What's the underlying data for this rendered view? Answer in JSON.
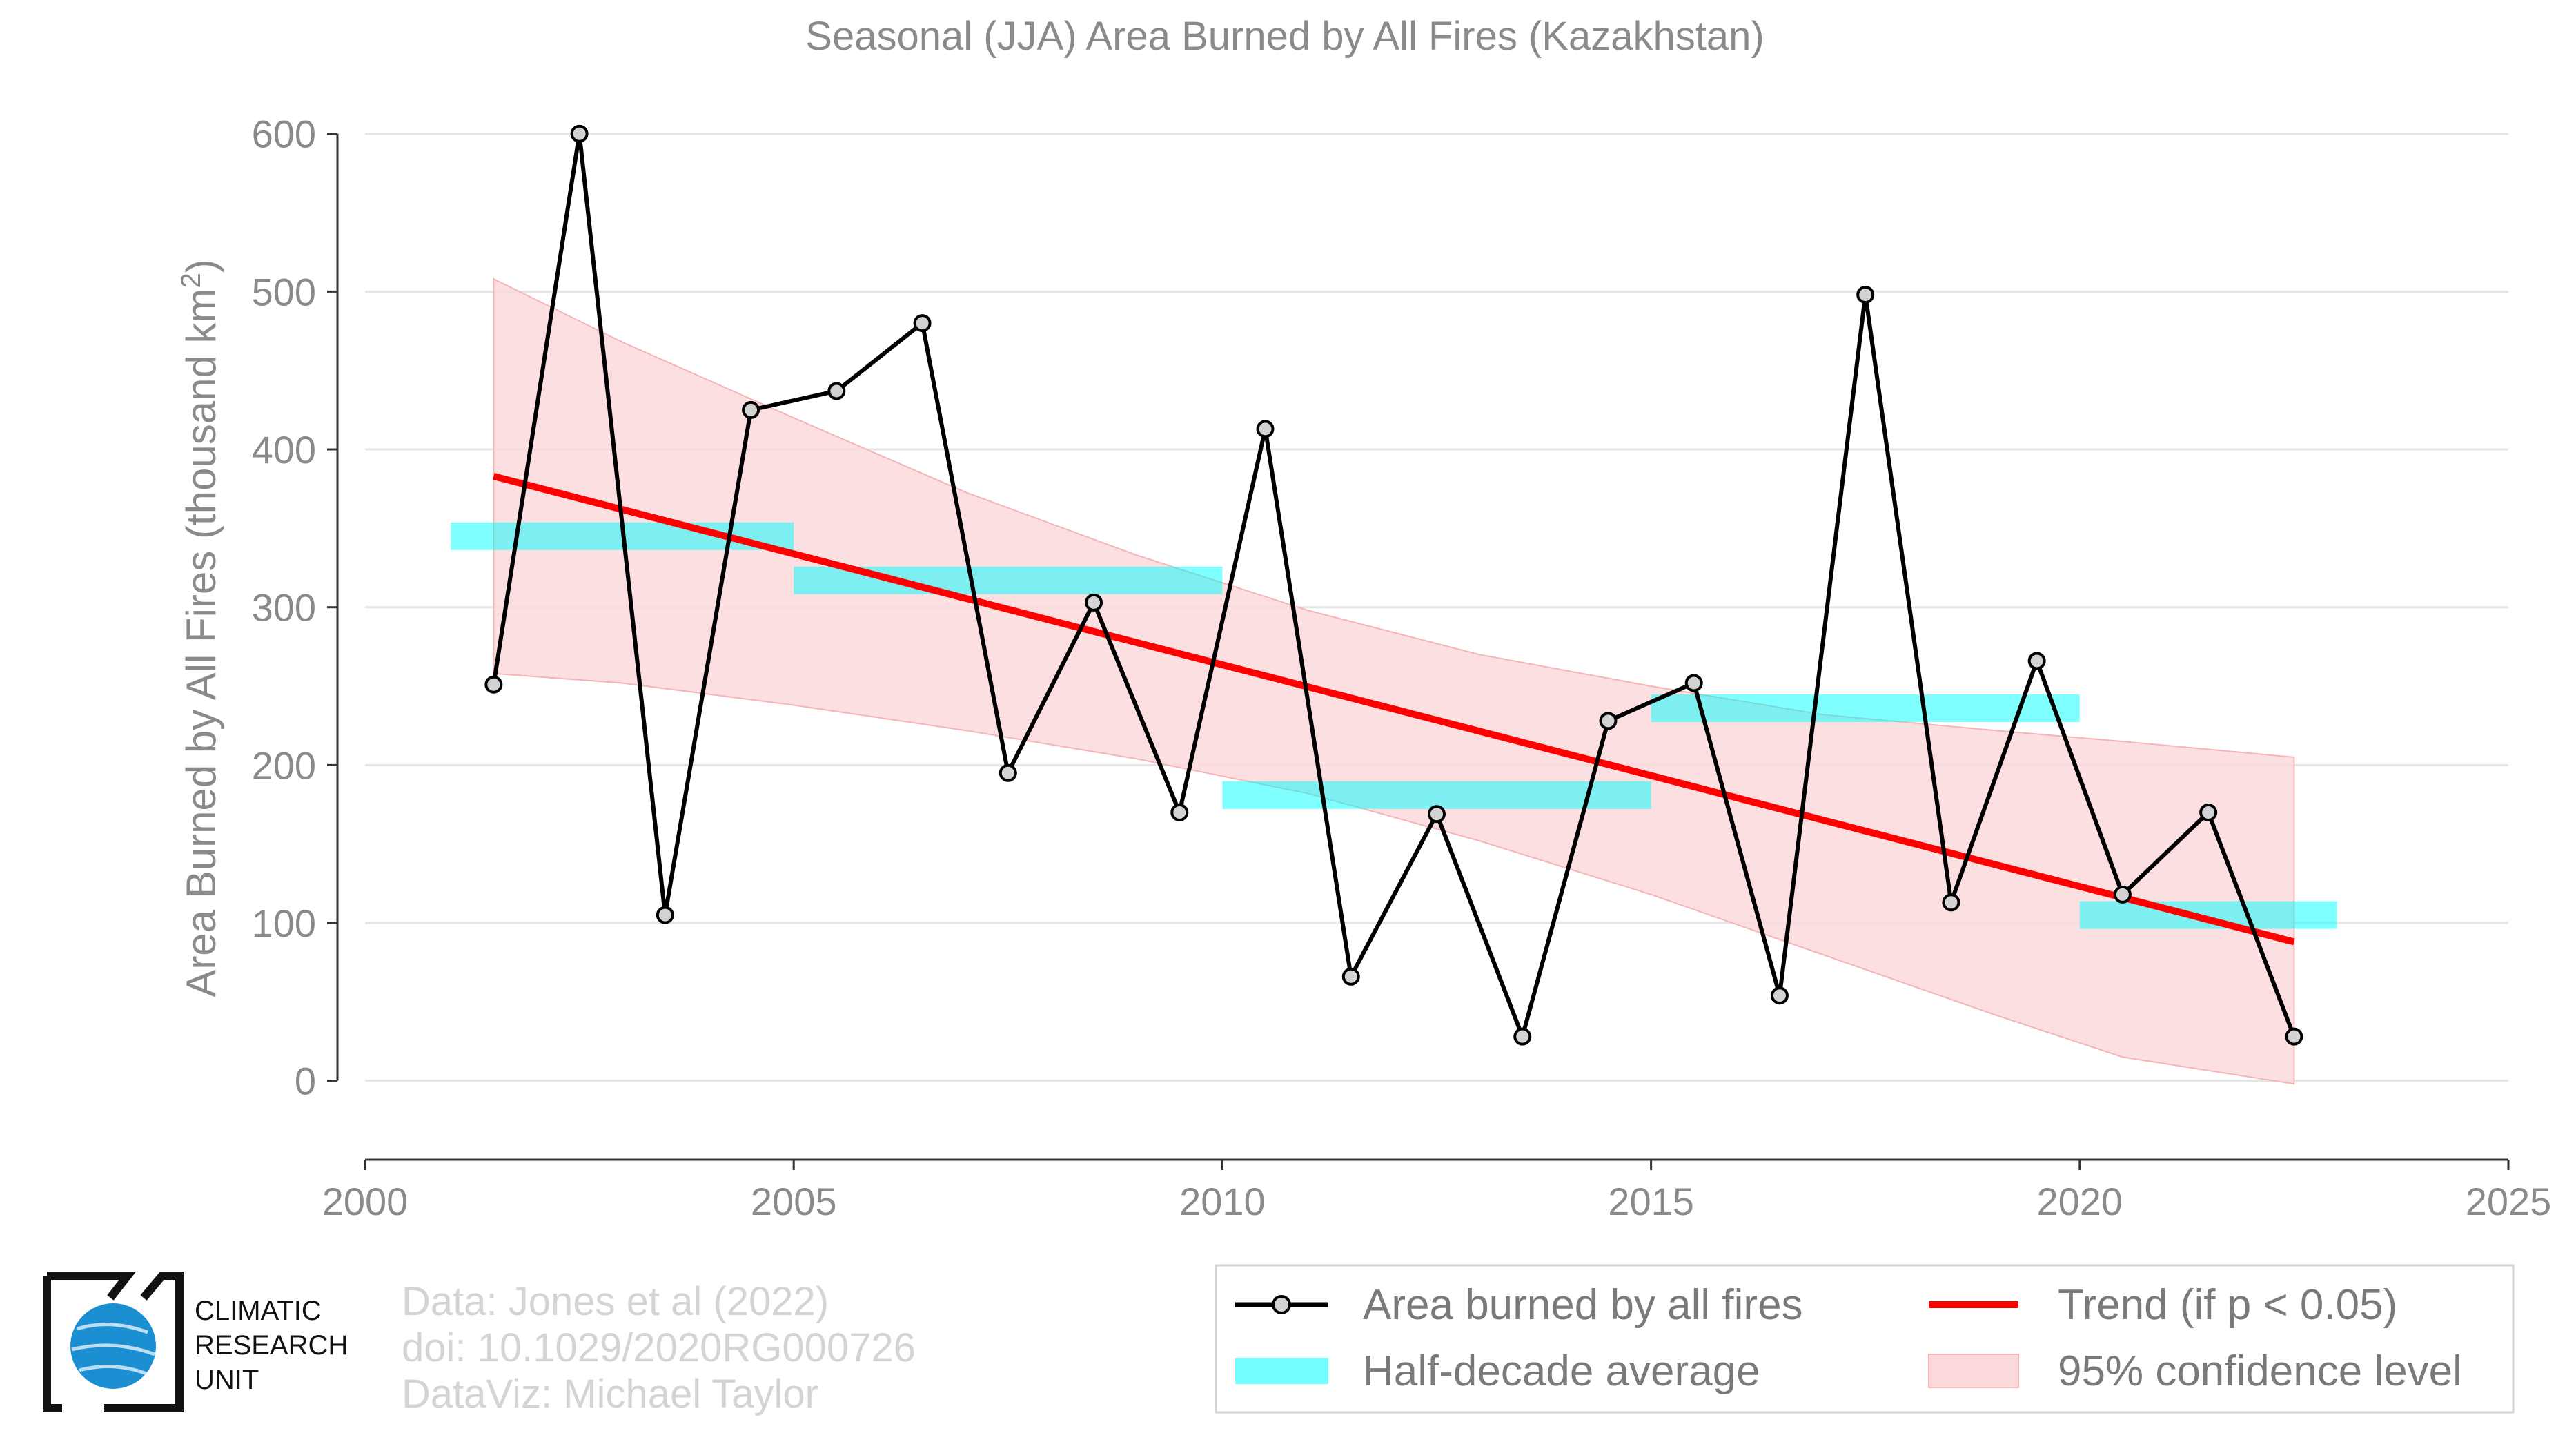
{
  "chart_data": {
    "type": "line",
    "title": "Seasonal (JJA) Area Burned by All Fires (Kazakhstan)",
    "ylabel": "Area Burned by All Fires (thousand km",
    "ylabel_sup": "2",
    "ylabel_end": ")",
    "xlim": [
      2000,
      2025
    ],
    "ylim": [
      -50,
      620
    ],
    "xticks": [
      2000,
      2005,
      2010,
      2015,
      2020,
      2025
    ],
    "yticks": [
      0,
      100,
      200,
      300,
      400,
      500,
      600
    ],
    "grid": "horizontal",
    "series": [
      {
        "name": "Area burned by all fires",
        "color": "#000000",
        "x": [
          2001.5,
          2002.5,
          2003.5,
          2004.5,
          2005.5,
          2006.5,
          2007.5,
          2008.5,
          2009.5,
          2010.5,
          2011.5,
          2012.5,
          2013.5,
          2014.5,
          2015.5,
          2016.5,
          2017.5,
          2018.5,
          2019.5,
          2020.5,
          2021.5,
          2022.5
        ],
        "values": [
          251,
          600,
          105,
          425,
          437,
          480,
          195,
          303,
          170,
          413,
          66,
          169,
          28,
          228,
          252,
          54,
          498,
          113,
          266,
          118,
          170,
          28
        ]
      }
    ],
    "half_decade_average": {
      "name": "Half-decade average",
      "color": "#00ffff",
      "segments": [
        {
          "x0": 2001,
          "x1": 2005,
          "value": 345
        },
        {
          "x0": 2005,
          "x1": 2010,
          "value": 317
        },
        {
          "x0": 2010,
          "x1": 2015,
          "value": 181
        },
        {
          "x0": 2015,
          "x1": 2020,
          "value": 236
        },
        {
          "x0": 2020,
          "x1": 2023,
          "value": 105
        }
      ]
    },
    "trend": {
      "name": "Trend (if p < 0.05)",
      "color": "#ff0000",
      "x": [
        2001.5,
        2022.5
      ],
      "values": [
        383,
        88
      ]
    },
    "confidence_band": {
      "name": "95% confidence level",
      "color": "#fcd9da",
      "x": [
        2001.5,
        2003,
        2005,
        2007,
        2009,
        2011,
        2013,
        2015,
        2017,
        2019,
        2020.5,
        2022.5
      ],
      "upper": [
        508,
        468,
        420,
        373,
        333,
        298,
        270,
        250,
        232,
        222,
        215,
        205
      ],
      "lower": [
        258,
        252,
        238,
        222,
        204,
        182,
        152,
        118,
        80,
        42,
        15,
        -2
      ]
    },
    "legend": {
      "placement": "bottom-right",
      "entries": [
        "Area burned by all fires",
        "Trend (if p < 0.05)",
        "Half-decade average",
        "95% confidence level"
      ]
    }
  },
  "credits": {
    "line1": "Data: Jones et al (2022)",
    "line2": "doi: 10.1029/2020RG000726",
    "line3": "DataViz: Michael Taylor"
  },
  "logo": {
    "line1": "CLIMATIC",
    "line2": "RESEARCH",
    "line3": "UNIT",
    "globe_color": "#1b8fd2"
  }
}
